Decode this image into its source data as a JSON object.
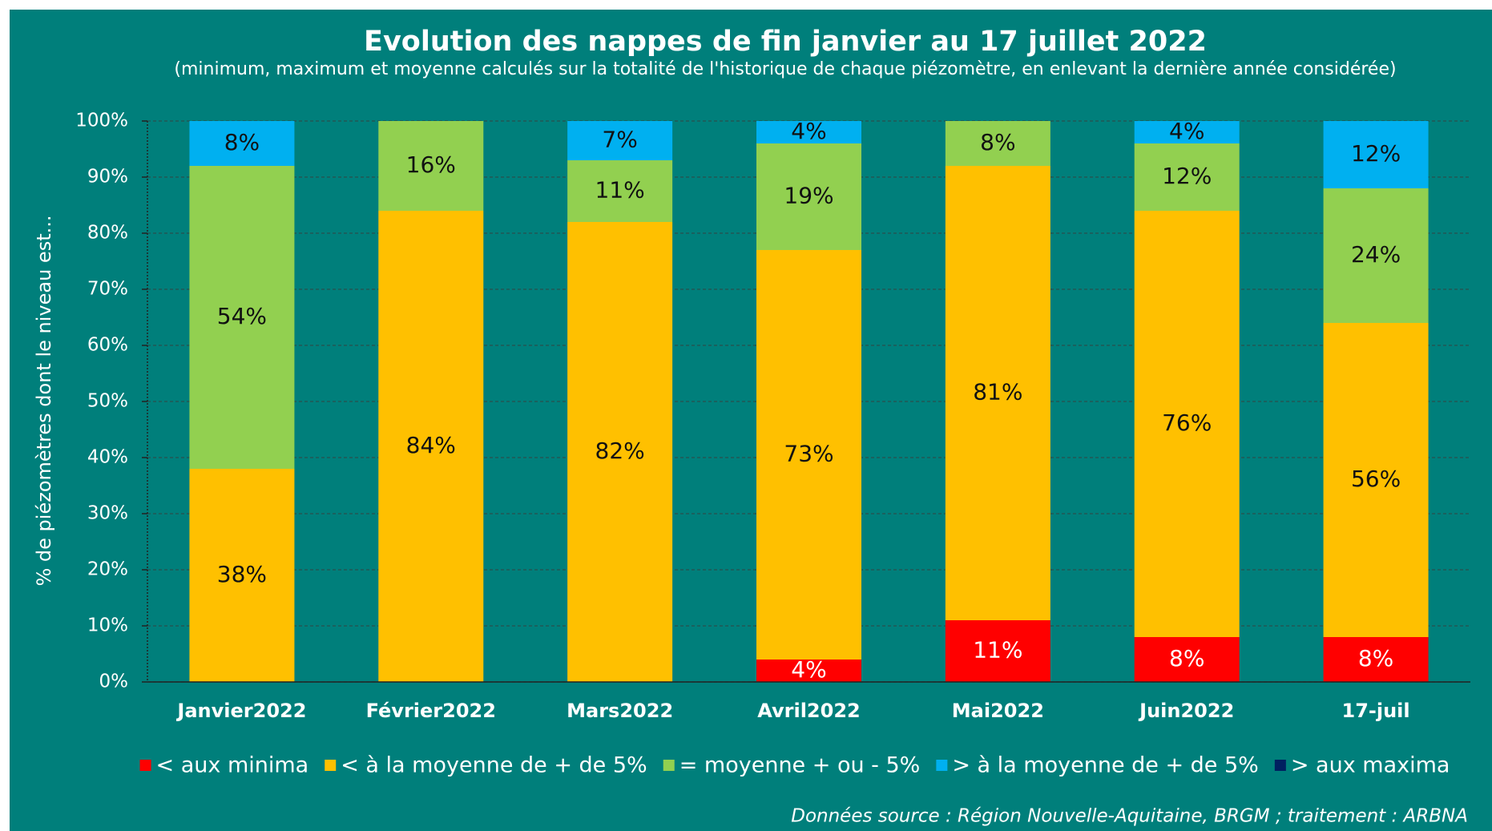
{
  "chart_data": {
    "type": "stacked_bar",
    "title": "Evolution des nappes de fin janvier au 17 juillet 2022",
    "subtitle": "(minimum, maximum et moyenne  calculés sur la totalité de l'historique de chaque piézomètre, en enlevant la dernière année considérée)",
    "y_label": "% de piézomètres dont le niveau est...",
    "source": "Données source : Région Nouvelle-Aquitaine, BRGM ; traitement : ARBNA",
    "categories": [
      "Janvier2022",
      "Février2022",
      "Mars2022",
      "Avril2022",
      "Mai2022",
      "Juin2022",
      "17-juil"
    ],
    "series": [
      {
        "name": "< aux minima",
        "color": "#ff0000",
        "values": [
          0,
          0,
          0,
          4,
          11,
          8,
          8
        ],
        "value_labels": [
          null,
          null,
          null,
          "4%",
          "11%",
          "8%",
          "8%"
        ]
      },
      {
        "name": "< à la moyenne de + de 5%",
        "color": "#ffc000",
        "values": [
          38,
          84,
          82,
          73,
          81,
          76,
          56
        ],
        "value_labels": [
          "38%",
          "84%",
          "82%",
          "73%",
          "81%",
          "76%",
          "56%"
        ]
      },
      {
        "name": "= moyenne + ou - 5%",
        "color": "#92d050",
        "values": [
          54,
          16,
          11,
          19,
          8,
          12,
          24
        ],
        "value_labels": [
          "54%",
          "16%",
          "11%",
          "19%",
          "8%",
          "12%",
          "24%"
        ]
      },
      {
        "name": "> à la moyenne de + de 5%",
        "color": "#00b0f0",
        "values": [
          8,
          0,
          7,
          4,
          0,
          4,
          12
        ],
        "value_labels": [
          "8%",
          null,
          "7%",
          "4%",
          null,
          "4%",
          "12%"
        ]
      },
      {
        "name": "> aux maxima",
        "color": "#002060",
        "values": [
          0,
          0,
          0,
          0,
          0,
          0,
          0
        ],
        "value_labels": [
          null,
          null,
          null,
          null,
          null,
          null,
          null
        ]
      }
    ],
    "ylim": [
      0,
      100
    ],
    "yticks": [
      {
        "value": 0,
        "label": "0%"
      },
      {
        "value": 10,
        "label": "10%"
      },
      {
        "value": 20,
        "label": "20%"
      },
      {
        "value": 30,
        "label": "30%"
      },
      {
        "value": 40,
        "label": "40%"
      },
      {
        "value": 50,
        "label": "50%"
      },
      {
        "value": 60,
        "label": "60%"
      },
      {
        "value": 70,
        "label": "70%"
      },
      {
        "value": 80,
        "label": "80%"
      },
      {
        "value": 90,
        "label": "90%"
      },
      {
        "value": 100,
        "label": "100%"
      }
    ],
    "grid": true,
    "legend": "bottom"
  }
}
